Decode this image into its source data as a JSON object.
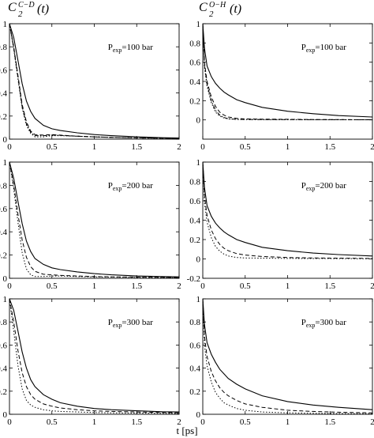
{
  "columns": [
    {
      "title": "C",
      "title_sub": "2",
      "title_sup": "C−D",
      "title_arg": "(t)"
    },
    {
      "title": "C",
      "title_sub": "2",
      "title_sup": "O−H",
      "title_arg": "(t)"
    }
  ],
  "xlabel": "t [ps]",
  "styles": {
    "solid": "",
    "dashed": "5,3",
    "dotted": "1.5,2.2",
    "dashdot": "5,2,1.5,2"
  },
  "chart_data": [
    {
      "type": "line",
      "xlim": [
        0,
        2
      ],
      "ylim": [
        0,
        1
      ],
      "yticks": [
        0,
        0.2,
        0.4,
        0.6,
        0.8,
        1
      ],
      "xticks": [
        0,
        0.5,
        1,
        1.5,
        2
      ],
      "annotation": {
        "prefix": "P",
        "sub": "exp",
        "value": "=100 bar"
      },
      "x": [
        0,
        0.05,
        0.1,
        0.15,
        0.2,
        0.25,
        0.3,
        0.4,
        0.5,
        0.6,
        0.8,
        1.0,
        1.2,
        1.5,
        1.8,
        2.0
      ],
      "series": [
        {
          "style": "solid",
          "values": [
            1.0,
            0.88,
            0.68,
            0.48,
            0.33,
            0.24,
            0.18,
            0.12,
            0.09,
            0.075,
            0.055,
            0.04,
            0.03,
            0.02,
            0.012,
            0.01
          ]
        },
        {
          "style": "dashed",
          "values": [
            1.0,
            0.8,
            0.55,
            0.3,
            0.15,
            0.07,
            0.04,
            0.035,
            0.04,
            0.035,
            0.025,
            0.02,
            0.015,
            0.01,
            0.008,
            0.005
          ]
        },
        {
          "style": "dotted",
          "values": [
            1.0,
            0.78,
            0.52,
            0.27,
            0.12,
            0.05,
            0.02,
            0.02,
            0.03,
            0.03,
            0.025,
            0.02,
            0.015,
            0.01,
            0.008,
            0.005
          ]
        },
        {
          "style": "dashdot",
          "values": [
            1.0,
            0.79,
            0.53,
            0.28,
            0.13,
            0.06,
            0.03,
            0.03,
            0.035,
            0.032,
            0.025,
            0.02,
            0.015,
            0.01,
            0.008,
            0.005
          ]
        }
      ]
    },
    {
      "type": "line",
      "xlim": [
        0,
        2
      ],
      "ylim": [
        -0.2,
        1
      ],
      "yticks": [
        0,
        0.2,
        0.4,
        0.6,
        0.8,
        1
      ],
      "xticks": [
        0,
        0.5,
        1,
        1.5,
        2
      ],
      "annotation": {
        "prefix": "P",
        "sub": "exp",
        "value": "=100 bar"
      },
      "x": [
        0,
        0.02,
        0.05,
        0.1,
        0.15,
        0.2,
        0.25,
        0.3,
        0.4,
        0.5,
        0.7,
        1.0,
        1.3,
        1.6,
        2.0
      ],
      "series": [
        {
          "style": "solid",
          "values": [
            1.0,
            0.75,
            0.56,
            0.45,
            0.38,
            0.33,
            0.29,
            0.26,
            0.21,
            0.18,
            0.13,
            0.09,
            0.065,
            0.045,
            0.03
          ]
        },
        {
          "style": "dashed",
          "values": [
            1.0,
            0.6,
            0.4,
            0.24,
            0.14,
            0.08,
            0.05,
            0.03,
            0.015,
            0.01,
            0.008,
            0.006,
            0.004,
            0.003,
            0.002
          ]
        },
        {
          "style": "dotted",
          "values": [
            1.0,
            0.55,
            0.35,
            0.18,
            0.08,
            0.04,
            0.02,
            0.01,
            0.005,
            0.004,
            0.003,
            0.002,
            0.002,
            0.001,
            0.001
          ]
        },
        {
          "style": "dashdot",
          "values": [
            1.0,
            0.57,
            0.37,
            0.2,
            0.1,
            0.05,
            0.025,
            0.012,
            0.006,
            0.005,
            0.004,
            0.003,
            0.002,
            0.002,
            0.001
          ]
        }
      ]
    },
    {
      "type": "line",
      "xlim": [
        0,
        2
      ],
      "ylim": [
        0,
        1
      ],
      "yticks": [
        0,
        0.2,
        0.4,
        0.6,
        0.8,
        1
      ],
      "xticks": [
        0,
        0.5,
        1,
        1.5,
        2
      ],
      "annotation": {
        "prefix": "P",
        "sub": "exp",
        "value": "=200 bar"
      },
      "x": [
        0,
        0.05,
        0.1,
        0.15,
        0.2,
        0.25,
        0.3,
        0.4,
        0.5,
        0.6,
        0.8,
        1.0,
        1.2,
        1.5,
        1.8,
        2.0
      ],
      "series": [
        {
          "style": "solid",
          "values": [
            1.0,
            0.86,
            0.66,
            0.47,
            0.32,
            0.23,
            0.17,
            0.12,
            0.09,
            0.075,
            0.055,
            0.04,
            0.03,
            0.02,
            0.015,
            0.012
          ]
        },
        {
          "style": "dashed",
          "values": [
            1.0,
            0.8,
            0.55,
            0.33,
            0.18,
            0.1,
            0.06,
            0.035,
            0.03,
            0.025,
            0.02,
            0.015,
            0.012,
            0.01,
            0.008,
            0.006
          ]
        },
        {
          "style": "dotted",
          "values": [
            1.0,
            0.77,
            0.48,
            0.22,
            0.08,
            0.03,
            0.015,
            0.015,
            0.02,
            0.02,
            0.015,
            0.012,
            0.01,
            0.008,
            0.006,
            0.005
          ]
        }
      ]
    },
    {
      "type": "line",
      "xlim": [
        0,
        2
      ],
      "ylim": [
        -0.2,
        1
      ],
      "yticks": [
        -0.2,
        0,
        0.2,
        0.4,
        0.6,
        0.8,
        1
      ],
      "xticks": [
        0,
        0.5,
        1,
        1.5,
        2
      ],
      "annotation": {
        "prefix": "P",
        "sub": "exp",
        "value": "=200 bar"
      },
      "x": [
        0,
        0.02,
        0.05,
        0.1,
        0.15,
        0.2,
        0.25,
        0.3,
        0.4,
        0.5,
        0.7,
        1.0,
        1.3,
        1.6,
        2.0
      ],
      "series": [
        {
          "style": "solid",
          "values": [
            1.0,
            0.74,
            0.55,
            0.44,
            0.37,
            0.32,
            0.28,
            0.25,
            0.2,
            0.17,
            0.12,
            0.085,
            0.06,
            0.045,
            0.03
          ]
        },
        {
          "style": "dashed",
          "values": [
            1.0,
            0.65,
            0.45,
            0.3,
            0.21,
            0.15,
            0.11,
            0.085,
            0.055,
            0.04,
            0.025,
            0.015,
            0.01,
            0.008,
            0.005
          ]
        },
        {
          "style": "dotted",
          "values": [
            1.0,
            0.58,
            0.38,
            0.22,
            0.13,
            0.08,
            0.05,
            0.03,
            0.015,
            0.01,
            0.008,
            0.005,
            0.004,
            0.003,
            0.002
          ]
        }
      ]
    },
    {
      "type": "line",
      "xlim": [
        0,
        2
      ],
      "ylim": [
        0,
        1
      ],
      "yticks": [
        0,
        0.2,
        0.4,
        0.6,
        0.8,
        1
      ],
      "xticks": [
        0,
        0.5,
        1,
        1.5,
        2
      ],
      "annotation": {
        "prefix": "P",
        "sub": "exp",
        "value": "=300 bar"
      },
      "x": [
        0,
        0.05,
        0.1,
        0.15,
        0.2,
        0.25,
        0.3,
        0.4,
        0.5,
        0.6,
        0.8,
        1.0,
        1.2,
        1.5,
        1.8,
        2.0
      ],
      "series": [
        {
          "style": "solid",
          "values": [
            1.0,
            0.9,
            0.72,
            0.54,
            0.4,
            0.3,
            0.24,
            0.17,
            0.13,
            0.1,
            0.07,
            0.05,
            0.04,
            0.03,
            0.022,
            0.02
          ]
        },
        {
          "style": "dashed",
          "values": [
            1.0,
            0.8,
            0.55,
            0.36,
            0.24,
            0.17,
            0.13,
            0.09,
            0.07,
            0.055,
            0.04,
            0.03,
            0.025,
            0.02,
            0.015,
            0.012
          ]
        },
        {
          "style": "dotted",
          "values": [
            1.0,
            0.72,
            0.42,
            0.22,
            0.12,
            0.08,
            0.06,
            0.04,
            0.03,
            0.025,
            0.02,
            0.015,
            0.012,
            0.01,
            0.008,
            0.007
          ]
        }
      ]
    },
    {
      "type": "line",
      "xlim": [
        0,
        2
      ],
      "ylim": [
        0,
        1
      ],
      "yticks": [
        0,
        0.2,
        0.4,
        0.6,
        0.8,
        1
      ],
      "xticks": [
        0,
        0.5,
        1,
        1.5,
        2
      ],
      "annotation": {
        "prefix": "P",
        "sub": "exp",
        "value": "=300 bar"
      },
      "x": [
        0,
        0.02,
        0.05,
        0.1,
        0.15,
        0.2,
        0.25,
        0.3,
        0.4,
        0.5,
        0.7,
        1.0,
        1.3,
        1.6,
        2.0
      ],
      "series": [
        {
          "style": "solid",
          "values": [
            1.0,
            0.78,
            0.62,
            0.52,
            0.45,
            0.39,
            0.35,
            0.31,
            0.26,
            0.22,
            0.16,
            0.11,
            0.08,
            0.06,
            0.04
          ]
        },
        {
          "style": "dashed",
          "values": [
            1.0,
            0.68,
            0.5,
            0.37,
            0.29,
            0.23,
            0.19,
            0.16,
            0.12,
            0.09,
            0.06,
            0.035,
            0.025,
            0.018,
            0.012
          ]
        },
        {
          "style": "dotted",
          "values": [
            1.0,
            0.6,
            0.42,
            0.28,
            0.19,
            0.14,
            0.1,
            0.08,
            0.05,
            0.035,
            0.02,
            0.012,
            0.008,
            0.006,
            0.004
          ]
        }
      ]
    }
  ]
}
